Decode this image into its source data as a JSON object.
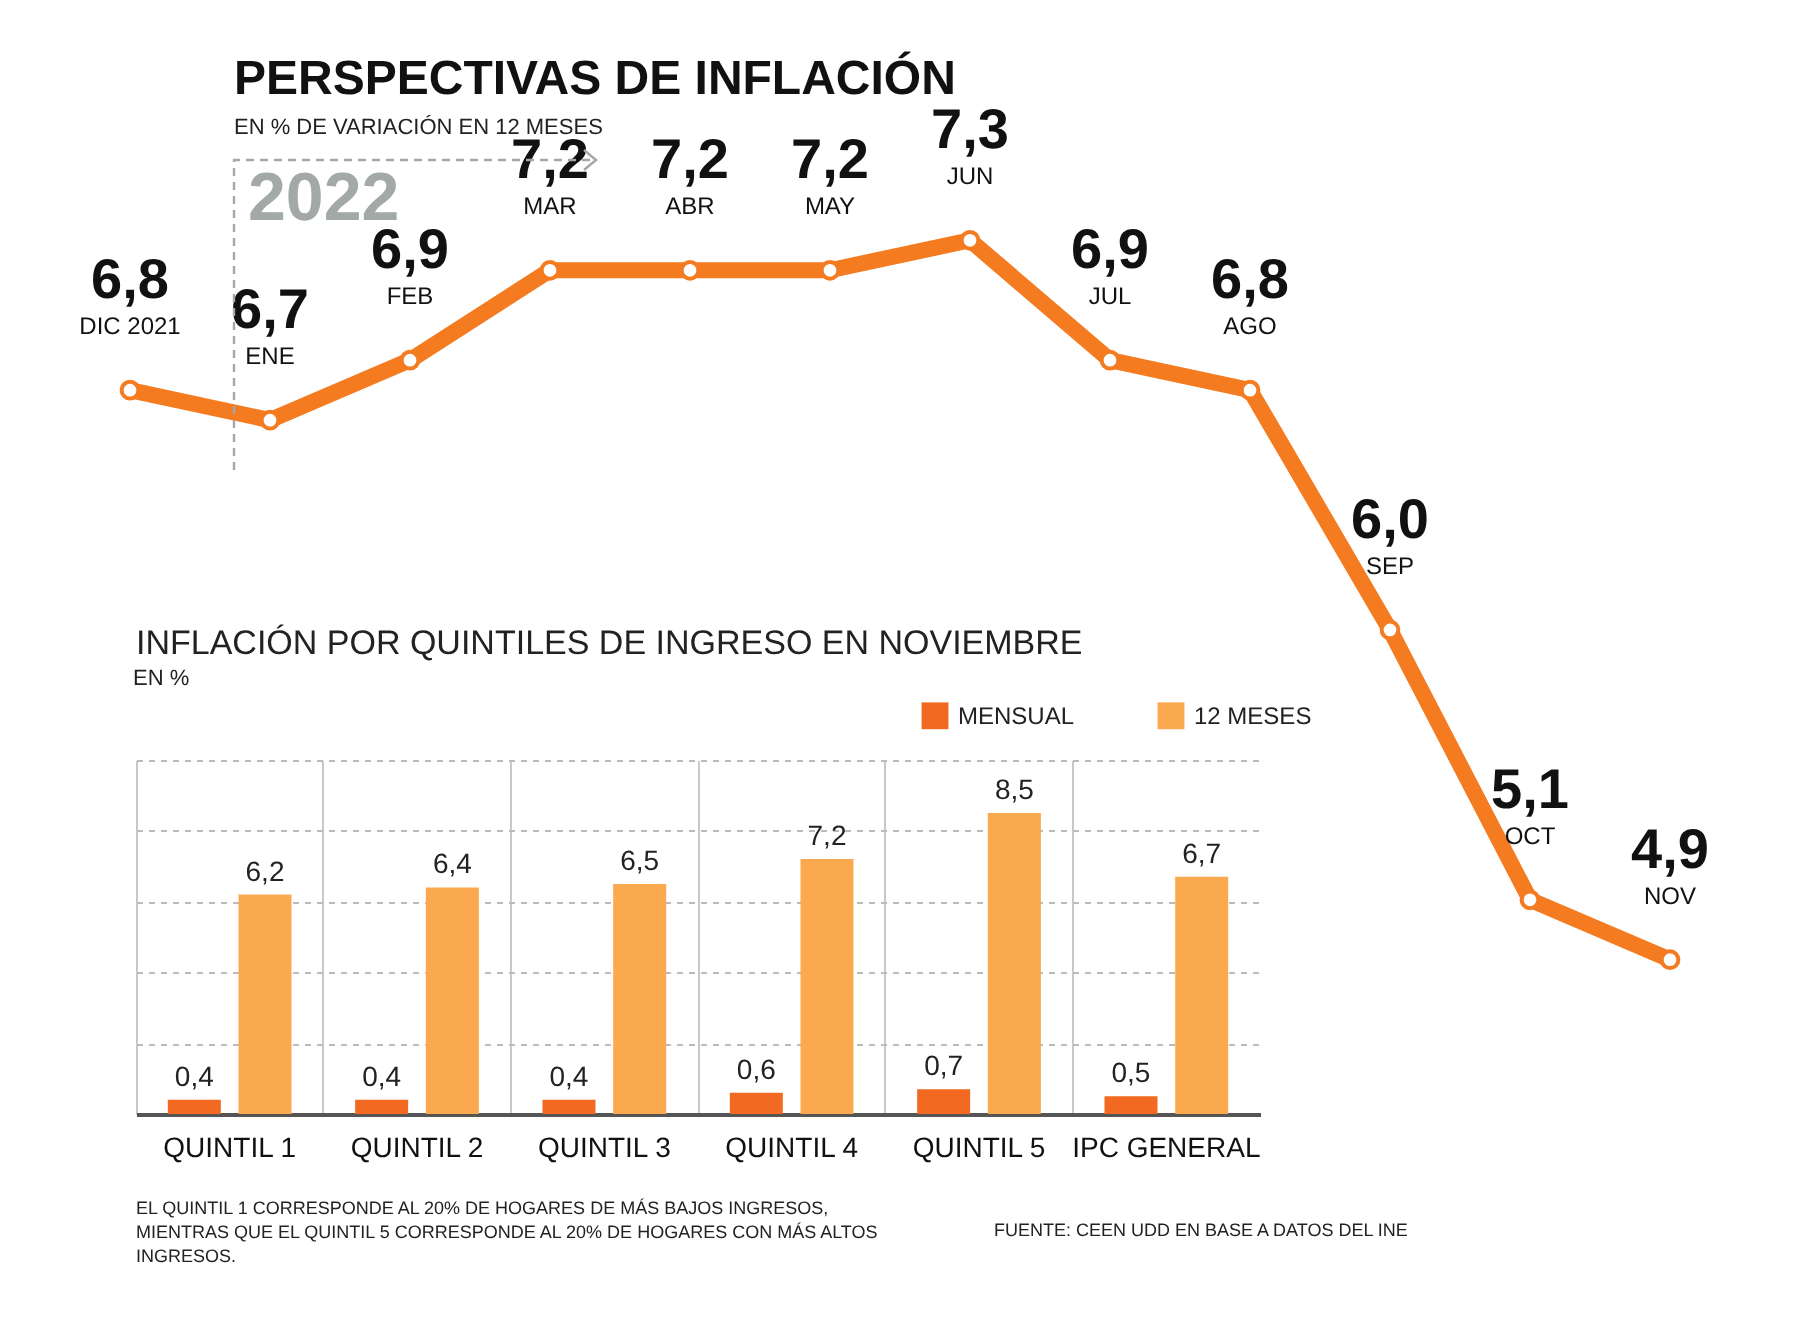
{
  "chart_data": [
    {
      "type": "line",
      "title": "PERSPECTIVAS DE INFLACIÓN",
      "subtitle": "EN % DE VARIACIÓN EN 12 MESES",
      "categories": [
        "DIC 2021",
        "ENE",
        "FEB",
        "MAR",
        "ABR",
        "MAY",
        "JUN",
        "JUL",
        "AGO",
        "SEP",
        "OCT",
        "NOV"
      ],
      "series": [
        {
          "color": "#f47b20",
          "values": [
            6.8,
            6.7,
            6.9,
            7.2,
            7.2,
            7.2,
            7.3,
            6.9,
            6.8,
            6.0,
            5.1,
            4.9
          ],
          "value_labels": [
            "6,8",
            "6,7",
            "6,9",
            "7,2",
            "7,2",
            "7,2",
            "7,3",
            "6,9",
            "6,8",
            "6,0",
            "5,1",
            "4,9"
          ]
        }
      ],
      "marker": "circle",
      "tick_labels": false,
      "annotations": [
        "2022"
      ]
    },
    {
      "type": "bar",
      "title": "INFLACIÓN POR QUINTILES DE INGRESO EN NOVIEMBRE",
      "ylabel": "EN %",
      "categories": [
        "QUINTIL 1",
        "QUINTIL 2",
        "QUINTIL 3",
        "QUINTIL 4",
        "QUINTIL 5",
        "IPC GENERAL"
      ],
      "series": [
        {
          "name": "MENSUAL",
          "color": "#f26a21",
          "values": [
            0.4,
            0.4,
            0.4,
            0.6,
            0.7,
            0.5
          ],
          "value_labels": [
            "0,4",
            "0,4",
            "0,4",
            "0,6",
            "0,7",
            "0,5"
          ]
        },
        {
          "name": "12 MESES",
          "color": "#fba94f",
          "values": [
            6.2,
            6.4,
            6.5,
            7.2,
            8.5,
            6.7
          ],
          "value_labels": [
            "6,2",
            "6,4",
            "6,5",
            "7,2",
            "8,5",
            "6,7"
          ]
        }
      ],
      "tick_labels": "x",
      "grid": true,
      "legend": "top right",
      "annotations": [
        "EL QUINTIL 1 CORRESPONDE AL 20% DE HOGARES DE MÁS BAJOS INGRESOS, MIENTRAS QUE EL QUINTIL 5 CORRESPONDE AL 20% DE HOGARES CON MÁS ALTOS INGRESOS.",
        "FUENTE: CEEN UDD EN BASE A DATOS DEL INE"
      ]
    }
  ]
}
